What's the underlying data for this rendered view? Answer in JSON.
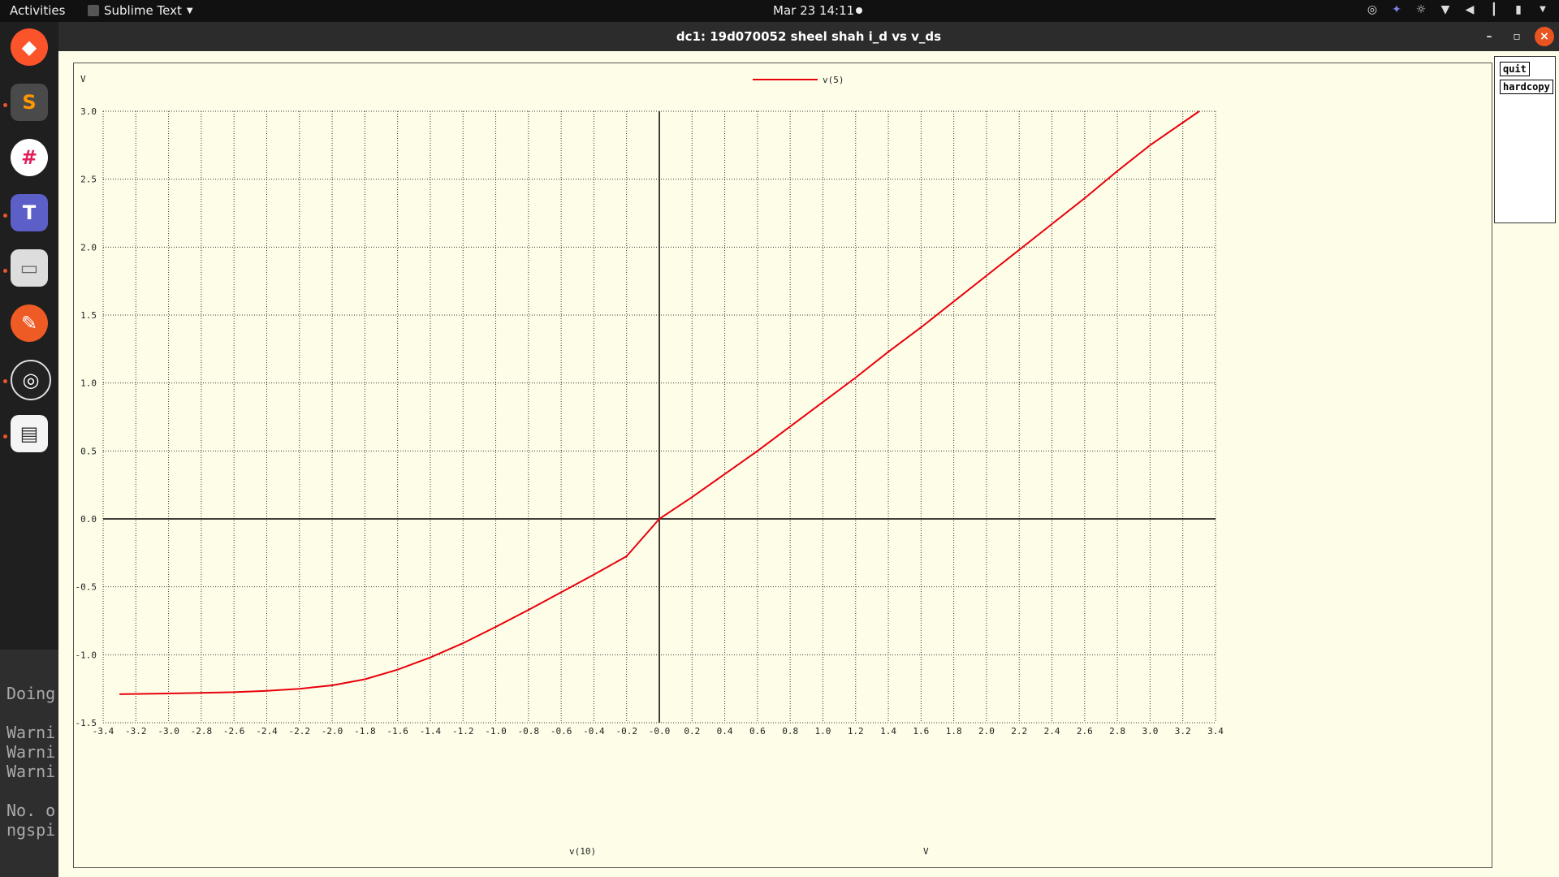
{
  "topbar": {
    "activities": "Activities",
    "app": "Sublime Text",
    "clock": "Mar 23  14:11"
  },
  "window": {
    "title": "dc1: 19d070052 sheel shah i_d vs v_ds"
  },
  "buttons": {
    "quit": "quit",
    "hardcopy": "hardcopy"
  },
  "terminal": {
    "lines": [
      "Doing",
      "Warni",
      "Warni",
      "Warni",
      "No. o",
      "ngspi"
    ]
  },
  "chart_data": {
    "type": "line",
    "ylabel_top": "V",
    "xlabel": "v(10)",
    "xunit": "V",
    "xlim": [
      -3.4,
      3.4
    ],
    "ylim": [
      -1.5,
      3.0
    ],
    "xticks": [
      -3.4,
      -3.2,
      -3.0,
      -2.8,
      -2.6,
      -2.4,
      -2.2,
      -2.0,
      -1.8,
      -1.6,
      -1.4,
      -1.2,
      -1.0,
      -0.8,
      -0.6,
      -0.4,
      -0.2,
      0.0,
      0.2,
      0.4,
      0.6,
      0.8,
      1.0,
      1.2,
      1.4,
      1.6,
      1.8,
      2.0,
      2.2,
      2.4,
      2.6,
      2.8,
      3.0,
      3.2,
      3.4
    ],
    "xtick_labels": [
      "-3.4",
      "-3.2",
      "-3.0",
      "-2.8",
      "-2.6",
      "-2.4",
      "-2.2",
      "-2.0",
      "-1.8",
      "-1.6",
      "-1.4",
      "-1.2",
      "-1.0",
      "-0.8",
      "-0.6",
      "-0.4",
      "-0.2",
      "-0.0",
      "0.2",
      "0.4",
      "0.6",
      "0.8",
      "1.0",
      "1.2",
      "1.4",
      "1.6",
      "1.8",
      "2.0",
      "2.2",
      "2.4",
      "2.6",
      "2.8",
      "3.0",
      "3.2",
      "3.4"
    ],
    "yticks": [
      3.0,
      2.5,
      2.0,
      1.5,
      1.0,
      0.5,
      0.0,
      -0.5,
      -1.0,
      -1.5
    ],
    "ytick_labels": [
      "3.0",
      "2.5",
      "2.0",
      "1.5",
      "1.0",
      "0.5",
      "0.0",
      "-0.5",
      "-1.0",
      "-1.5"
    ],
    "grid": true,
    "legend": "top-center",
    "series": [
      {
        "name": "v(5)",
        "color": "#e8000b",
        "x": [
          -3.3,
          -3.0,
          -2.8,
          -2.6,
          -2.4,
          -2.2,
          -2.0,
          -1.8,
          -1.6,
          -1.4,
          -1.2,
          -1.0,
          -0.8,
          -0.6,
          -0.4,
          -0.2,
          0.0,
          0.2,
          0.4,
          0.6,
          0.8,
          1.0,
          1.2,
          1.4,
          1.6,
          1.8,
          2.0,
          2.2,
          2.4,
          2.6,
          2.8,
          3.0,
          3.3
        ],
        "y": [
          -1.29,
          -1.285,
          -1.28,
          -1.275,
          -1.265,
          -1.25,
          -1.225,
          -1.18,
          -1.11,
          -1.02,
          -0.915,
          -0.795,
          -0.67,
          -0.54,
          -0.41,
          -0.275,
          0.0,
          0.16,
          0.33,
          0.5,
          0.68,
          0.86,
          1.04,
          1.23,
          1.41,
          1.6,
          1.79,
          1.98,
          2.17,
          2.36,
          2.56,
          2.75,
          3.0
        ]
      }
    ]
  }
}
